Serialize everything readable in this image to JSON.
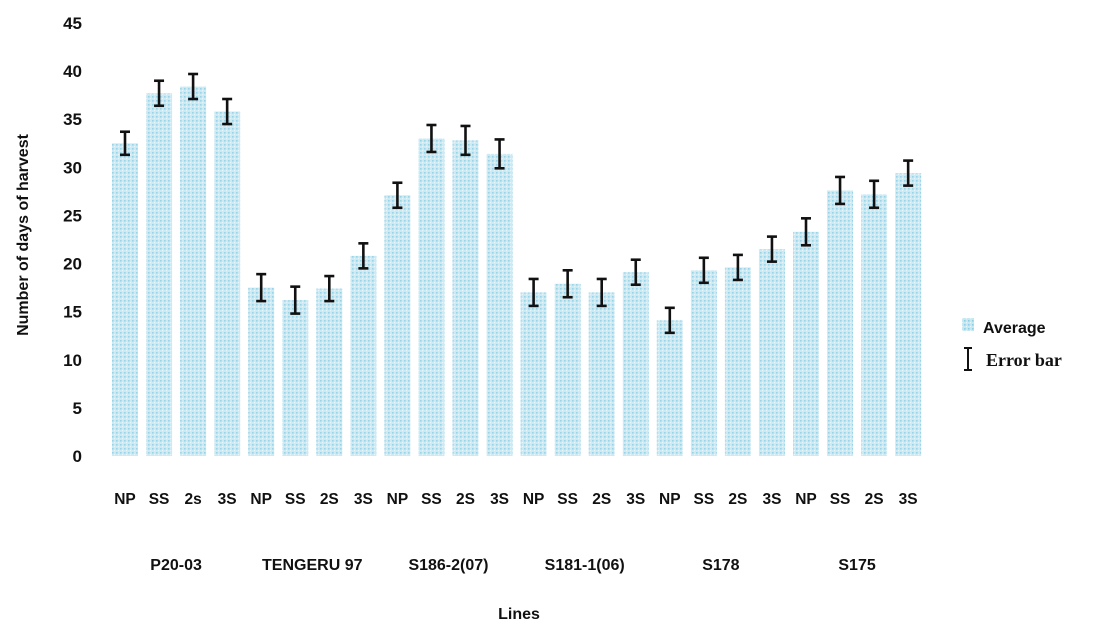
{
  "chart_data": {
    "type": "bar",
    "title": "",
    "xlabel": "Lines",
    "ylabel": "Number of days of harvest",
    "ylim": [
      0,
      45
    ],
    "yticks": [
      "0",
      "5",
      "10",
      "15",
      "20",
      "25",
      "30",
      "35",
      "40",
      "45"
    ],
    "grid": false,
    "legend_position": "right",
    "bar_color": "#bfe6f2",
    "error_color": "#111111",
    "categories": [
      "NP",
      "SS",
      "2s",
      "3S",
      "NP",
      "SS",
      "2S",
      "3S",
      "NP",
      "SS",
      "2S",
      "3S",
      "NP",
      "SS",
      "2S",
      "3S",
      "NP",
      "SS",
      "2S",
      "3S",
      "NP",
      "SS",
      "2S",
      "3S"
    ],
    "groups": [
      {
        "label": "P20-03",
        "categories": [
          "NP",
          "SS",
          "2s",
          "3S"
        ]
      },
      {
        "label": "TENGERU 97",
        "categories": [
          "NP",
          "SS",
          "2S",
          "3S"
        ]
      },
      {
        "label": "S186-2(07)",
        "categories": [
          "NP",
          "SS",
          "2S",
          "3S"
        ]
      },
      {
        "label": "S181-1(06)",
        "categories": [
          "NP",
          "SS",
          "2S",
          "3S"
        ]
      },
      {
        "label": "S178",
        "categories": [
          "NP",
          "SS",
          "2S",
          "3S"
        ]
      },
      {
        "label": "S175",
        "categories": [
          "NP",
          "SS",
          "2S",
          "3S"
        ]
      }
    ],
    "series": [
      {
        "name": "Average",
        "values": [
          32.5,
          37.7,
          38.4,
          35.8,
          17.5,
          16.2,
          17.4,
          20.8,
          27.1,
          33.0,
          32.8,
          31.4,
          17.0,
          17.9,
          17.0,
          19.1,
          14.1,
          19.3,
          19.6,
          21.5,
          23.3,
          27.6,
          27.2,
          29.4
        ]
      },
      {
        "name": "Error bar",
        "values": [
          1.2,
          1.3,
          1.3,
          1.3,
          1.4,
          1.4,
          1.3,
          1.3,
          1.3,
          1.4,
          1.5,
          1.5,
          1.4,
          1.4,
          1.4,
          1.3,
          1.3,
          1.3,
          1.3,
          1.3,
          1.4,
          1.4,
          1.4,
          1.3
        ]
      }
    ],
    "legend": [
      "Average",
      "Error bar"
    ],
    "group_label_positions": [
      {
        "group": "P20-03",
        "x_index_center": 1.5
      },
      {
        "group": "TENGERU 97",
        "x_index_center": 5.5
      },
      {
        "group": "S186-2(07)",
        "x_index_center": 9.5
      },
      {
        "group": "S181-1(06)",
        "x_index_center": 13.5
      },
      {
        "group": "S178",
        "x_index_center": 17.5
      },
      {
        "group": "S175",
        "x_index_center": 21.5
      }
    ]
  }
}
